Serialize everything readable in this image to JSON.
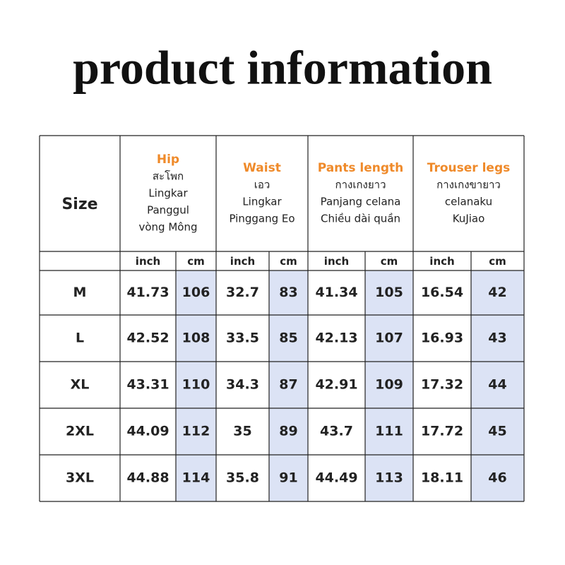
{
  "title": "product information",
  "table": {
    "size_header": "Size",
    "groups": [
      {
        "name": "Hip",
        "lines": [
          "สะโพก",
          "Lingkar",
          "Panggul",
          "vòng Mông"
        ]
      },
      {
        "name": "Waist",
        "lines": [
          "เอว",
          "Lingkar",
          "Pinggang  Eo"
        ]
      },
      {
        "name": "Pants length",
        "lines": [
          "กางเกงยาว",
          "Panjang celana",
          "Chiều dài quần"
        ]
      },
      {
        "name": "Trouser legs",
        "lines": [
          "กางเกงขายาว",
          "celanaku",
          "KuJiao"
        ]
      }
    ],
    "units": [
      "inch",
      "cm",
      "inch",
      "cm",
      "inch",
      "cm",
      "inch",
      "cm"
    ],
    "rows": [
      [
        "M",
        "41.73",
        "106",
        "32.7",
        "83",
        "41.34",
        "105",
        "16.54",
        "42"
      ],
      [
        "L",
        "42.52",
        "108",
        "33.5",
        "85",
        "42.13",
        "107",
        "16.93",
        "43"
      ],
      [
        "XL",
        "43.31",
        "110",
        "34.3",
        "87",
        "42.91",
        "109",
        "17.32",
        "44"
      ],
      [
        "2XL",
        "44.09",
        "112",
        "35",
        "89",
        "43.7",
        "111",
        "17.72",
        "45"
      ],
      [
        "3XL",
        "44.88",
        "114",
        "35.8",
        "91",
        "44.49",
        "113",
        "18.11",
        "46"
      ]
    ]
  }
}
